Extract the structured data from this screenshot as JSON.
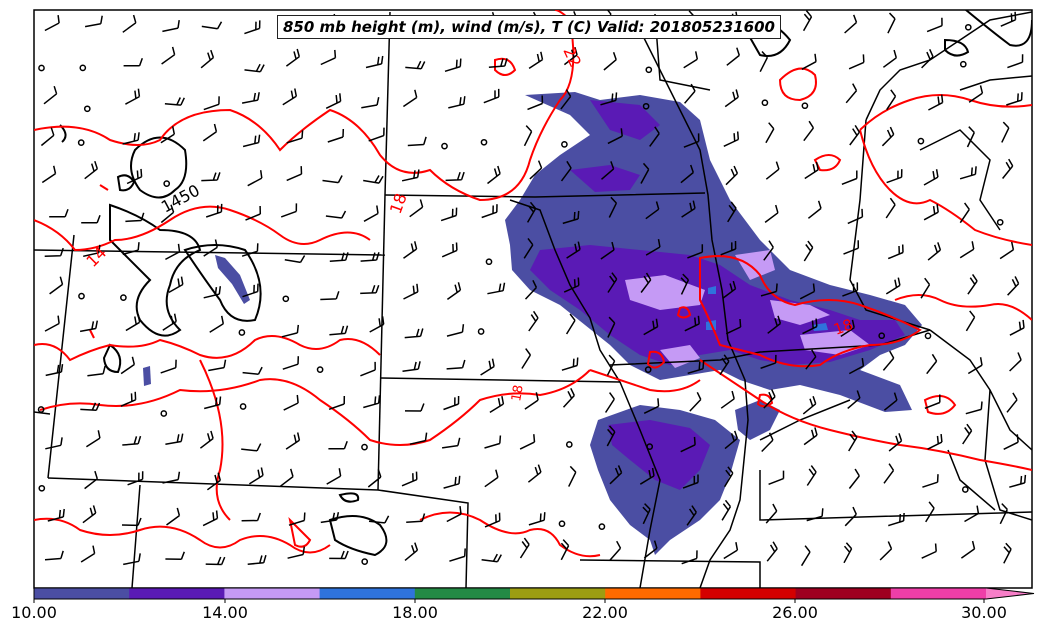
{
  "title": "850 mb height (m), wind (m/s), T (C) Valid: 201805231600",
  "contour_labels": {
    "height": [
      "1450"
    ],
    "temperature": [
      "22",
      "18",
      "14",
      "18",
      "18"
    ]
  },
  "colorbar": {
    "tick_labels": [
      "10.00",
      "14.00",
      "18.00",
      "22.00",
      "26.00",
      "30.00"
    ],
    "colors": [
      "#4b4ea3",
      "#5a1ab5",
      "#c59af5",
      "#2f73dc",
      "#238a45",
      "#9c9d12",
      "#ff6a00",
      "#d40000",
      "#9e0020",
      "#ef3ea8",
      "#f77ec8"
    ]
  },
  "colors": {
    "temperature_contour": "#ff0000",
    "height_contour": "#000000",
    "boundaries": "#000000"
  }
}
